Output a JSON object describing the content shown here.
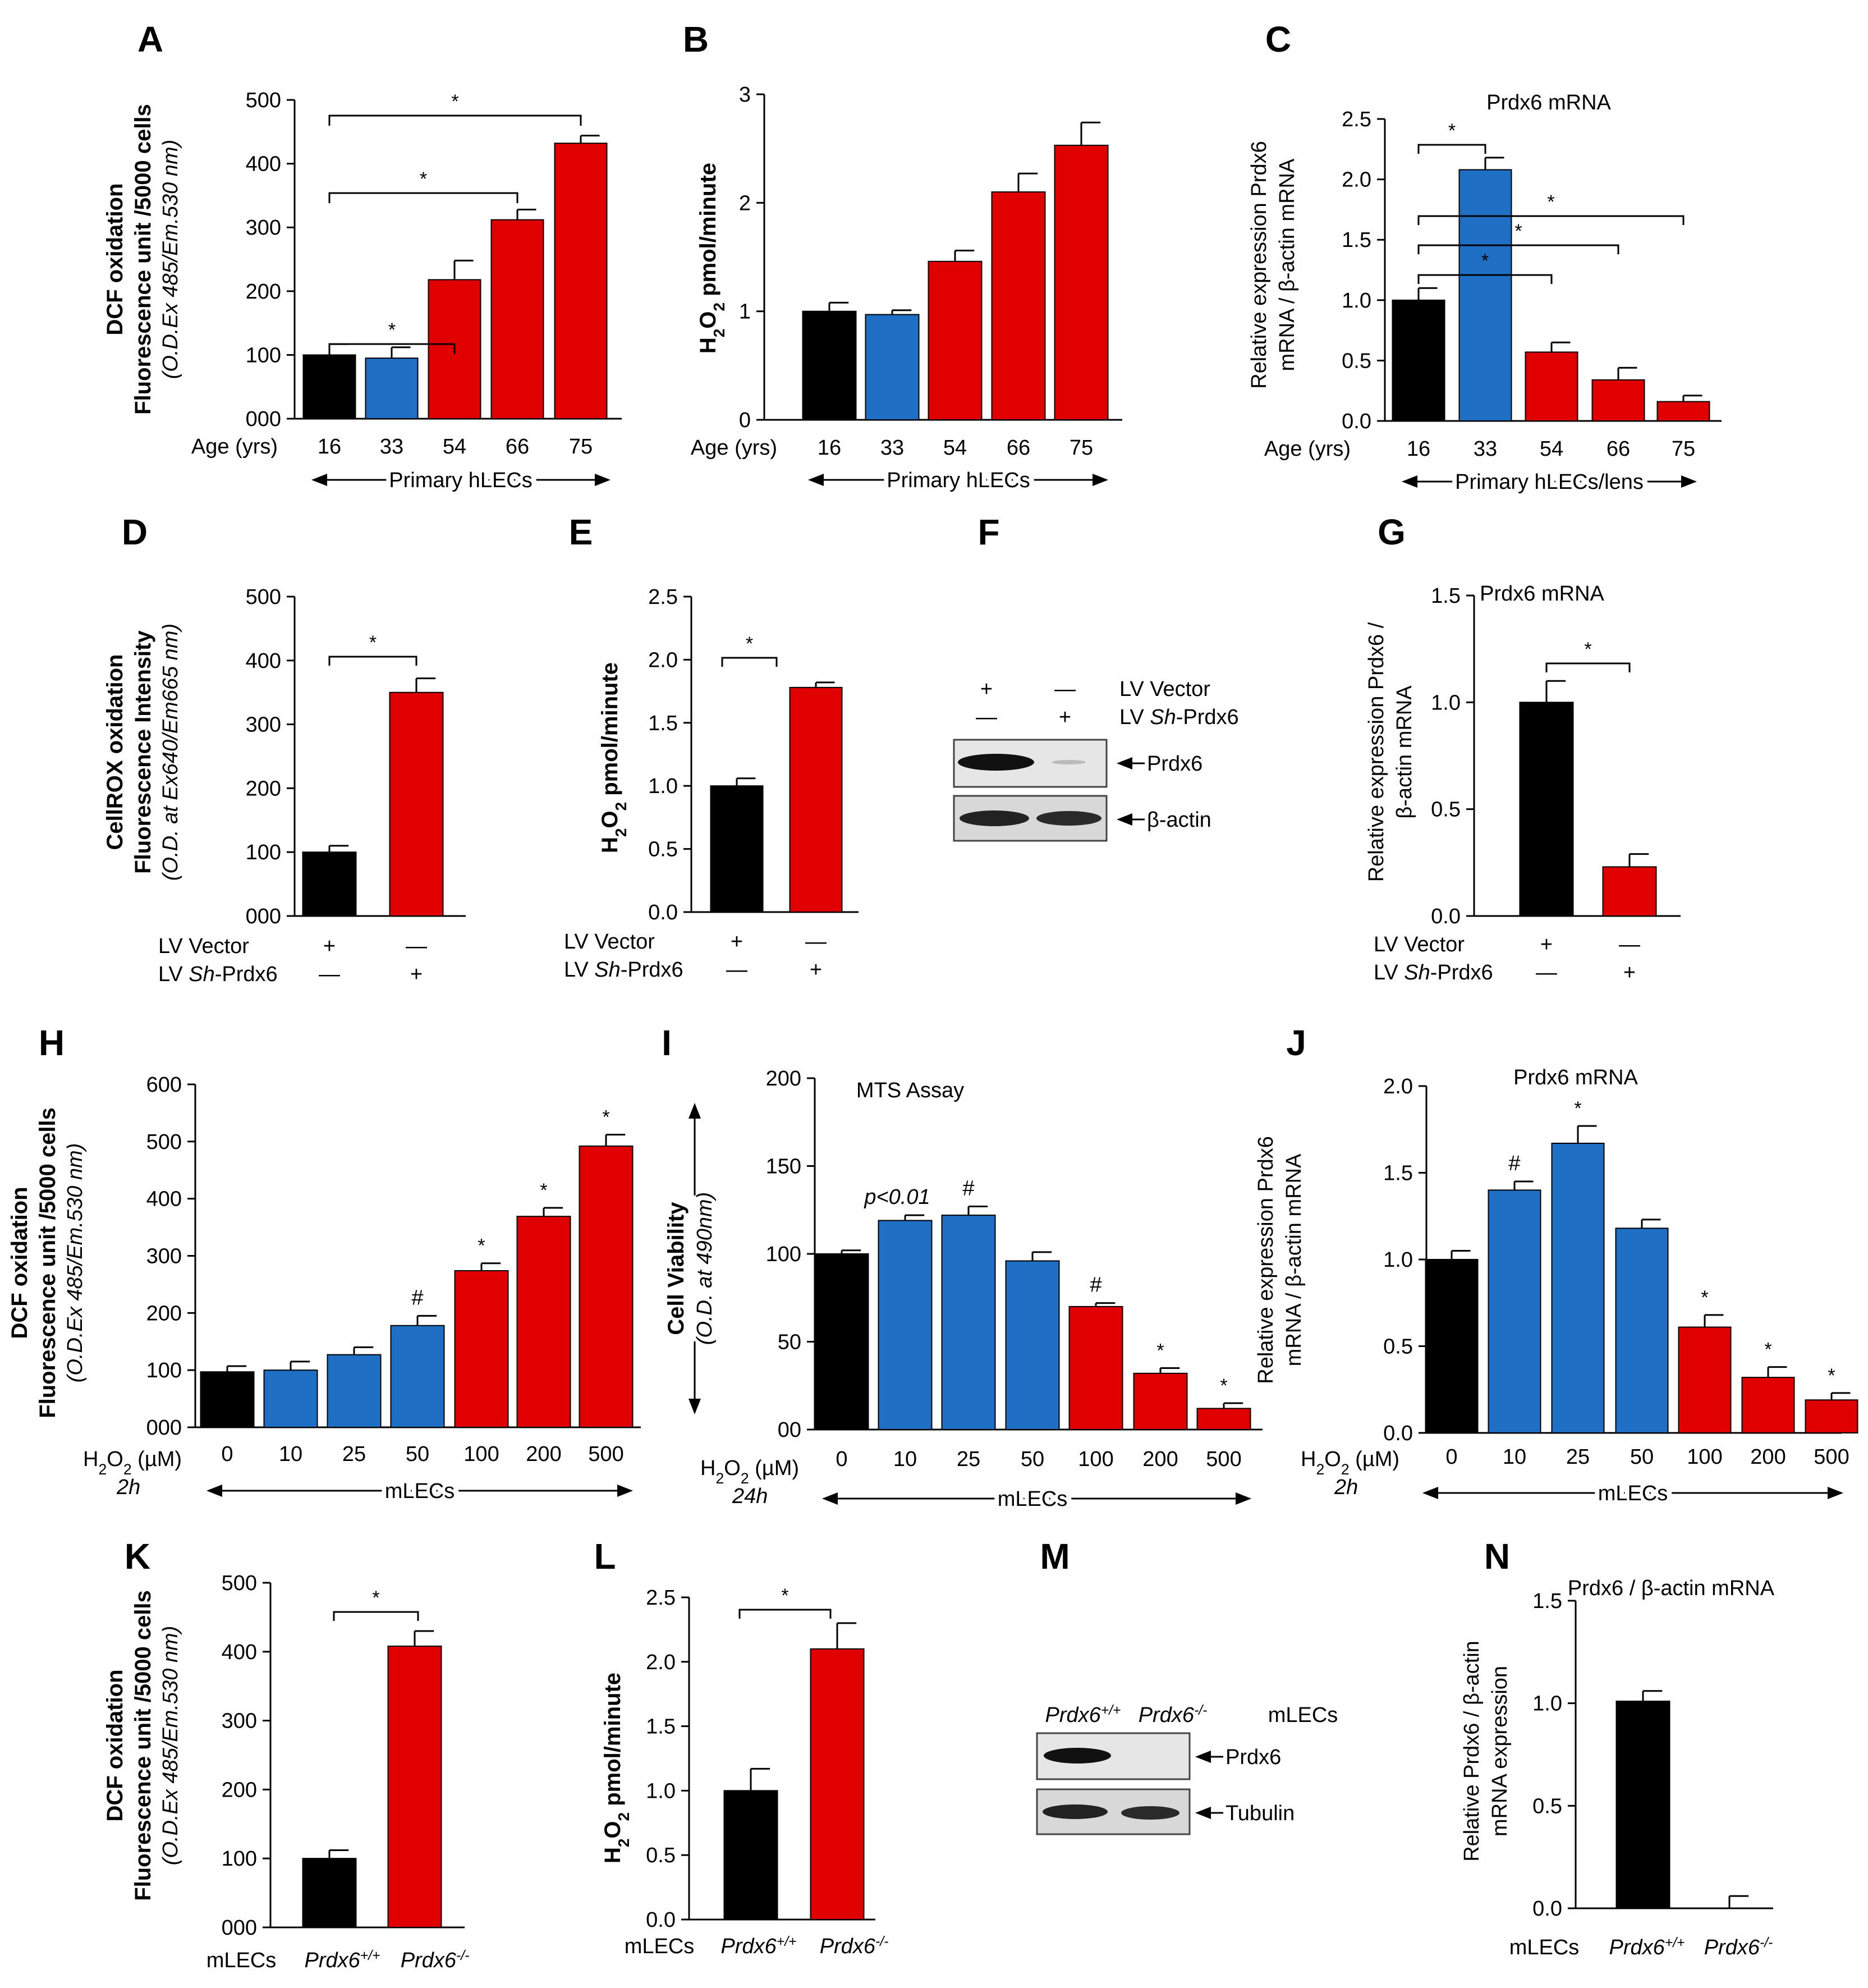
{
  "figure": {
    "colors": {
      "black": "#000000",
      "blue": "#1f6fc4",
      "red": "#e00000"
    },
    "shared": {
      "age_label": "Age (yrs)",
      "primary_hlecs": "Primary hLECs",
      "primary_hlecs_lens": "Primary hLECs/lens",
      "mlecs": "mLECs",
      "lv_vector": "LV Vector",
      "lv": "LV ",
      "sh": "Sh",
      "prdx6_suffix": "-Prdx6",
      "plus": "+",
      "minus": "—",
      "h2o2_um": "H₂O₂ (µM)",
      "h2o2_uM_alt": "H₂O₂(µM)",
      "two_h": "2h",
      "twentyfour_h": "24h",
      "wt": "Prdx6+/+",
      "ko": "Prdx6-/-",
      "prdx6_base": "Prdx6",
      "sup_wt": "+/+",
      "sup_ko": "-/-"
    },
    "westerns": {
      "F": {
        "label": "F",
        "lane_plus": "+",
        "lane_minus": "—",
        "lv_vector": "LV Vector",
        "lv_sh": "LV Sh-Prdx6",
        "band1": "Prdx6",
        "band2": "β-actin"
      },
      "M": {
        "label": "M",
        "header": "mLECs",
        "band1": "Prdx6",
        "band2": "Tubulin"
      }
    }
  },
  "chart_data": [
    {
      "id": "A",
      "type": "bar",
      "title": "",
      "ylabel": [
        "DCF oxidation",
        "Fluorescence unit /5000 cells",
        "(O.D.Ex 485/Em.530 nm)"
      ],
      "xlabel": "Age (yrs)",
      "xsub": "Primary hLECs",
      "categories": [
        "16",
        "33",
        "54",
        "66",
        "75"
      ],
      "values": [
        100,
        95,
        218,
        312,
        432
      ],
      "errors": [
        17,
        17,
        30,
        16,
        12
      ],
      "colors": [
        "black",
        "blue",
        "red",
        "red",
        "red"
      ],
      "ylim": [
        0,
        500
      ],
      "yticks": [
        "000",
        "100",
        "200",
        "300",
        "400",
        "500"
      ],
      "annotations": [
        "*",
        "*",
        "*"
      ]
    },
    {
      "id": "B",
      "type": "bar",
      "title": "",
      "ylabel": [
        "H2O2 pmol/minute"
      ],
      "xlabel": "Age (yrs)",
      "xsub": "Primary hLECs",
      "categories": [
        "16",
        "33",
        "54",
        "66",
        "75"
      ],
      "values": [
        1.0,
        0.97,
        1.46,
        2.1,
        2.53
      ],
      "errors": [
        0.08,
        0.04,
        0.1,
        0.17,
        0.21
      ],
      "colors": [
        "black",
        "blue",
        "red",
        "red",
        "red"
      ],
      "ylim": [
        0,
        3
      ],
      "yticks": [
        "0",
        "1",
        "2",
        "3"
      ]
    },
    {
      "id": "C",
      "type": "bar",
      "title": "Prdx6 mRNA",
      "ylabel": [
        "Relative expression Prdx6",
        "mRNA / β-actin mRNA"
      ],
      "xlabel": "Age (yrs)",
      "xsub": "Primary hLECs/lens",
      "categories": [
        "16",
        "33",
        "54",
        "66",
        "75"
      ],
      "values": [
        1.0,
        2.08,
        0.57,
        0.34,
        0.16
      ],
      "errors": [
        0.1,
        0.1,
        0.08,
        0.1,
        0.05
      ],
      "colors": [
        "black",
        "blue",
        "red",
        "red",
        "red"
      ],
      "ylim": [
        0,
        2.5
      ],
      "yticks": [
        "0.0",
        "0.5",
        "1.0",
        "1.5",
        "2.0",
        "2.5"
      ],
      "annotations": [
        "*",
        "*",
        "*",
        "*"
      ]
    },
    {
      "id": "D",
      "type": "bar",
      "title": "",
      "ylabel": [
        "CellROX oxidation",
        "Fluorescence Intensity",
        "(O.D. at Ex640/Em665 nm)"
      ],
      "conditions": [
        "LV Vector",
        "LV Sh-Prdx6"
      ],
      "categories": [
        "LV Vector",
        "LV Sh-Prdx6"
      ],
      "values": [
        100,
        350
      ],
      "errors": [
        10,
        22
      ],
      "colors": [
        "black",
        "red"
      ],
      "ylim": [
        0,
        500
      ],
      "yticks": [
        "000",
        "100",
        "200",
        "300",
        "400",
        "500"
      ],
      "annotations": [
        "*"
      ]
    },
    {
      "id": "E",
      "type": "bar",
      "title": "",
      "ylabel": [
        "H2O2 pmol/minute"
      ],
      "categories": [
        "LV Vector",
        "LV Sh-Prdx6"
      ],
      "values": [
        1.0,
        1.78
      ],
      "errors": [
        0.06,
        0.04
      ],
      "colors": [
        "black",
        "red"
      ],
      "ylim": [
        0,
        2.5
      ],
      "yticks": [
        "0.0",
        "0.5",
        "1.0",
        "1.5",
        "2.0",
        "2.5"
      ],
      "annotations": [
        "*"
      ]
    },
    {
      "id": "G",
      "type": "bar",
      "title": "Prdx6 mRNA",
      "ylabel": [
        "Relative expression Prdx6 /",
        "β-actin mRNA"
      ],
      "categories": [
        "LV Vector",
        "LV Sh-Prdx6"
      ],
      "values": [
        1.0,
        0.23
      ],
      "errors": [
        0.1,
        0.06
      ],
      "colors": [
        "black",
        "red"
      ],
      "ylim": [
        0,
        1.5
      ],
      "yticks": [
        "0.0",
        "0.5",
        "1.0",
        "1.5"
      ],
      "annotations": [
        "*"
      ]
    },
    {
      "id": "H",
      "type": "bar",
      "title": "",
      "ylabel": [
        "DCF oxidation",
        "Fluorescence unit /5000 cells",
        "(O.D.Ex 485/Em.530 nm)"
      ],
      "xlabel": "H2O2 (µM) 2h",
      "xsub": "mLECs",
      "categories": [
        "0",
        "10",
        "25",
        "50",
        "100",
        "200",
        "500"
      ],
      "values": [
        97,
        100,
        127,
        178,
        274,
        369,
        492
      ],
      "errors": [
        10,
        15,
        13,
        17,
        13,
        15,
        20
      ],
      "colors": [
        "black",
        "blue",
        "blue",
        "blue",
        "red",
        "red",
        "red"
      ],
      "ylim": [
        0,
        600
      ],
      "yticks": [
        "000",
        "100",
        "200",
        "300",
        "400",
        "500",
        "600"
      ],
      "bar_labels": [
        "",
        "",
        "",
        "#",
        "*",
        "*",
        "*"
      ]
    },
    {
      "id": "I",
      "type": "bar",
      "title": "MTS Assay",
      "ylabel": [
        "Cell Viability",
        "(O.D. at 490nm)"
      ],
      "xlabel": "H2O2 (µM) 24h",
      "xsub": "mLECs",
      "categories": [
        "0",
        "10",
        "25",
        "50",
        "100",
        "200",
        "500"
      ],
      "values": [
        100,
        119,
        122,
        96,
        70,
        32,
        12
      ],
      "errors": [
        2,
        3,
        5,
        5,
        2,
        3,
        3
      ],
      "colors": [
        "black",
        "blue",
        "blue",
        "blue",
        "red",
        "red",
        "red"
      ],
      "ylim": [
        0,
        200
      ],
      "yticks": [
        "00",
        "50",
        "100",
        "150",
        "200"
      ],
      "bar_labels": [
        "",
        "p<0.01",
        "#",
        "",
        "#",
        "*",
        "*"
      ]
    },
    {
      "id": "J",
      "type": "bar",
      "title": "Prdx6 mRNA",
      "ylabel": [
        "Relative expression Prdx6",
        "mRNA / β-actin mRNA"
      ],
      "xlabel": "H2O2 (µM) 2h",
      "xsub": "mLECs",
      "categories": [
        "0",
        "10",
        "25",
        "50",
        "100",
        "200",
        "500"
      ],
      "values": [
        1.0,
        1.4,
        1.67,
        1.18,
        0.61,
        0.32,
        0.19
      ],
      "errors": [
        0.05,
        0.05,
        0.1,
        0.05,
        0.07,
        0.06,
        0.04
      ],
      "colors": [
        "black",
        "blue",
        "blue",
        "blue",
        "red",
        "red",
        "red"
      ],
      "ylim": [
        0,
        2.0
      ],
      "yticks": [
        "0.0",
        "0.5",
        "1.0",
        "1.5",
        "2.0"
      ],
      "bar_labels": [
        "",
        "#",
        "*",
        "",
        "*",
        "*",
        "*"
      ]
    },
    {
      "id": "K",
      "type": "bar",
      "title": "",
      "ylabel": [
        "DCF oxidation",
        "Fluorescence unit /5000 cells",
        "(O.D.Ex 485/Em.530 nm)"
      ],
      "categories": [
        "Prdx6+/+",
        "Prdx6-/-"
      ],
      "values": [
        100,
        408
      ],
      "errors": [
        12,
        22
      ],
      "colors": [
        "black",
        "red"
      ],
      "ylim": [
        0,
        500
      ],
      "yticks": [
        "000",
        "100",
        "200",
        "300",
        "400",
        "500"
      ],
      "annotations": [
        "*"
      ]
    },
    {
      "id": "L",
      "type": "bar",
      "title": "",
      "ylabel": [
        "H2O2 pmol/minute"
      ],
      "categories": [
        "Prdx6+/+",
        "Prdx6-/-"
      ],
      "values": [
        1.0,
        2.1
      ],
      "errors": [
        0.17,
        0.2
      ],
      "colors": [
        "black",
        "red"
      ],
      "ylim": [
        0,
        2.5
      ],
      "yticks": [
        "0.0",
        "0.5",
        "1.0",
        "1.5",
        "2.0",
        "2.5"
      ],
      "annotations": [
        "*"
      ]
    },
    {
      "id": "N",
      "type": "bar",
      "title": "Prdx6 / β-actin mRNA",
      "ylabel": [
        "Relative Prdx6 / β-actin",
        "mRNA expression"
      ],
      "categories": [
        "Prdx6+/+",
        "Prdx6-/-"
      ],
      "values": [
        1.01,
        0.0
      ],
      "errors": [
        0.05,
        0.06
      ],
      "colors": [
        "black",
        "red"
      ],
      "ylim": [
        0,
        1.5
      ],
      "yticks": [
        "0.0",
        "0.5",
        "1.0",
        "1.5"
      ]
    }
  ]
}
